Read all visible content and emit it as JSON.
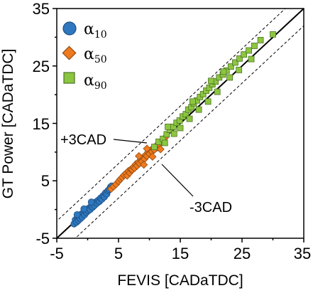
{
  "chart_data": {
    "type": "scatter",
    "xlabel": "FEVIS [CADaTDC]",
    "ylabel": "GT Power [CADaTDC]",
    "xlim": [
      -5,
      35
    ],
    "ylim": [
      -5,
      35
    ],
    "xticks": [
      "-5",
      "5",
      "15",
      "25",
      "35"
    ],
    "yticks": [
      "-5",
      "5",
      "15",
      "25",
      "35"
    ],
    "grid": false,
    "legend_position": "top-left",
    "reference_lines": [
      {
        "label": "",
        "offset": 0,
        "style": "solid"
      },
      {
        "label": "+3CAD",
        "offset": 3,
        "style": "dashed"
      },
      {
        "label": "-3CAD",
        "offset": -3,
        "style": "dashed"
      }
    ],
    "series": [
      {
        "name": "α10",
        "color": "#2f78bf",
        "marker": "circle",
        "points": [
          [
            -2.2,
            -2.5
          ],
          [
            -2.0,
            -1.8
          ],
          [
            -1.8,
            -2.2
          ],
          [
            -1.6,
            -1.3
          ],
          [
            -1.5,
            -1.9
          ],
          [
            -1.3,
            -1.0
          ],
          [
            -1.2,
            -1.6
          ],
          [
            -1.0,
            -0.8
          ],
          [
            -0.9,
            -1.3
          ],
          [
            -0.7,
            -0.6
          ],
          [
            -0.5,
            -0.9
          ],
          [
            -0.4,
            -0.3
          ],
          [
            -0.2,
            -0.5
          ],
          [
            0.0,
            0.1
          ],
          [
            0.1,
            -0.2
          ],
          [
            0.3,
            0.3
          ],
          [
            0.4,
            0.0
          ],
          [
            0.6,
            0.6
          ],
          [
            0.8,
            0.4
          ],
          [
            1.0,
            1.0
          ],
          [
            1.1,
            0.7
          ],
          [
            1.3,
            1.3
          ],
          [
            1.5,
            1.1
          ],
          [
            1.7,
            1.6
          ],
          [
            1.9,
            1.4
          ],
          [
            2.1,
            2.0
          ],
          [
            2.3,
            1.8
          ],
          [
            2.5,
            2.4
          ],
          [
            2.7,
            2.2
          ],
          [
            2.9,
            2.9
          ],
          [
            3.1,
            2.7
          ],
          [
            3.3,
            3.3
          ],
          [
            3.5,
            3.5
          ],
          [
            3.7,
            3.9
          ],
          [
            3.9,
            4.1
          ],
          [
            -1.7,
            -0.9
          ],
          [
            -0.6,
            0.1
          ],
          [
            0.6,
            1.3
          ]
        ]
      },
      {
        "name": "α50",
        "color": "#ee7a1f",
        "marker": "diamond",
        "points": [
          [
            3.8,
            3.6
          ],
          [
            4.2,
            4.0
          ],
          [
            4.6,
            4.4
          ],
          [
            5.0,
            4.9
          ],
          [
            5.3,
            5.3
          ],
          [
            5.6,
            5.6
          ],
          [
            5.9,
            6.0
          ],
          [
            6.2,
            6.3
          ],
          [
            6.4,
            5.9
          ],
          [
            6.6,
            6.7
          ],
          [
            6.8,
            6.4
          ],
          [
            7.0,
            7.0
          ],
          [
            7.2,
            6.9
          ],
          [
            7.4,
            7.4
          ],
          [
            7.6,
            7.2
          ],
          [
            7.8,
            7.9
          ],
          [
            8.0,
            7.6
          ],
          [
            8.2,
            8.2
          ],
          [
            8.4,
            8.0
          ],
          [
            8.6,
            8.7
          ],
          [
            8.8,
            8.4
          ],
          [
            9.0,
            9.1
          ],
          [
            9.2,
            8.8
          ],
          [
            9.4,
            9.5
          ],
          [
            9.6,
            9.3
          ],
          [
            9.8,
            10.0
          ],
          [
            10.0,
            9.7
          ],
          [
            10.2,
            10.3
          ],
          [
            10.4,
            10.1
          ],
          [
            10.6,
            10.6
          ],
          [
            10.8,
            10.4
          ],
          [
            11.0,
            11.0
          ],
          [
            11.3,
            10.8
          ],
          [
            11.6,
            11.3
          ],
          [
            12.0,
            11.9
          ],
          [
            12.5,
            12.5
          ],
          [
            9.1,
            7.8
          ],
          [
            10.5,
            9.2
          ],
          [
            11.8,
            10.5
          ],
          [
            8.3,
            9.3
          ],
          [
            9.6,
            10.6
          ]
        ]
      },
      {
        "name": "α90",
        "color": "#8cc640",
        "marker": "square",
        "points": [
          [
            10.8,
            10.9
          ],
          [
            11.5,
            11.8
          ],
          [
            12.2,
            12.3
          ],
          [
            12.8,
            13.1
          ],
          [
            13.3,
            13.9
          ],
          [
            13.9,
            14.4
          ],
          [
            14.4,
            15.1
          ],
          [
            14.9,
            15.5
          ],
          [
            15.4,
            16.2
          ],
          [
            15.9,
            16.6
          ],
          [
            16.3,
            17.4
          ],
          [
            16.8,
            17.8
          ],
          [
            17.2,
            18.5
          ],
          [
            17.7,
            19.0
          ],
          [
            18.2,
            19.6
          ],
          [
            18.7,
            20.1
          ],
          [
            19.2,
            20.7
          ],
          [
            19.7,
            21.2
          ],
          [
            20.2,
            21.8
          ],
          [
            20.7,
            22.3
          ],
          [
            21.3,
            23.0
          ],
          [
            21.9,
            23.5
          ],
          [
            22.5,
            24.2
          ],
          [
            23.2,
            24.9
          ],
          [
            23.9,
            25.6
          ],
          [
            24.6,
            26.3
          ],
          [
            25.3,
            27.0
          ],
          [
            26.1,
            27.7
          ],
          [
            27.0,
            28.5
          ],
          [
            28.0,
            29.5
          ],
          [
            30.0,
            30.5
          ],
          [
            22.0,
            24.0
          ],
          [
            23.0,
            23.0
          ],
          [
            15.0,
            14.2
          ],
          [
            16.5,
            15.8
          ],
          [
            18.0,
            17.4
          ],
          [
            19.5,
            18.8
          ],
          [
            12.5,
            11.6
          ],
          [
            14.0,
            13.2
          ],
          [
            21.0,
            20.5
          ],
          [
            24.5,
            24.3
          ],
          [
            26.5,
            26.2
          ],
          [
            17.0,
            18.8
          ],
          [
            20.0,
            22.4
          ],
          [
            13.0,
            14.4
          ]
        ]
      }
    ],
    "annotations": [
      "+3CAD",
      "-3CAD"
    ]
  }
}
